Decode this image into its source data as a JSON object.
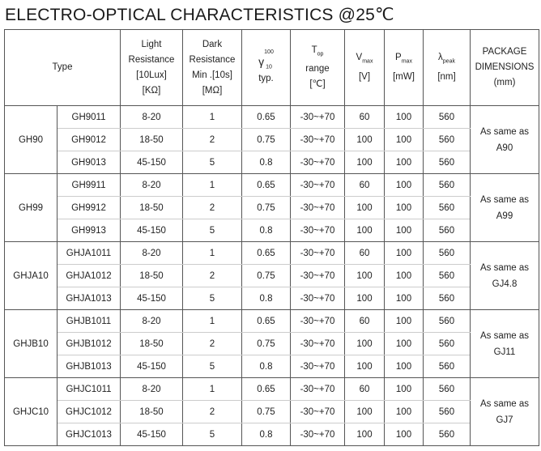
{
  "title": "ELECTRO-OPTICAL CHARACTERISTICS @25℃",
  "headers": {
    "type": "Type",
    "light": [
      "Light",
      "Resistance",
      "[10Lux]",
      "[KΩ]"
    ],
    "dark": [
      "Dark",
      "Resistance",
      "Min .[10s]",
      "[MΩ]"
    ],
    "gamma": {
      "symbol": "γ",
      "sup": "100",
      "sub": "10",
      "unit": "typ."
    },
    "top": {
      "symbol": "T",
      "sub": "op",
      "l2": "range",
      "l3": "[℃]"
    },
    "vmax": {
      "symbol": "V",
      "sub": "max",
      "unit": "[V]"
    },
    "pmax": {
      "symbol": "P",
      "sub": "max",
      "unit": "[mW]"
    },
    "lpeak": {
      "symbol": "λ",
      "sub": "peak",
      "unit": "[nm]"
    },
    "package": [
      "PACKAGE",
      "DIMENSIONS",
      "(mm)"
    ]
  },
  "groups": [
    {
      "name": "GH90",
      "package": [
        "As same as",
        "A90"
      ],
      "rows": [
        [
          "GH9011",
          "8-20",
          "1",
          "0.65",
          "-30~+70",
          "60",
          "100",
          "560"
        ],
        [
          "GH9012",
          "18-50",
          "2",
          "0.75",
          "-30~+70",
          "100",
          "100",
          "560"
        ],
        [
          "GH9013",
          "45-150",
          "5",
          "0.8",
          "-30~+70",
          "100",
          "100",
          "560"
        ]
      ]
    },
    {
      "name": "GH99",
      "package": [
        "As same as",
        "A99"
      ],
      "rows": [
        [
          "GH9911",
          "8-20",
          "1",
          "0.65",
          "-30~+70",
          "60",
          "100",
          "560"
        ],
        [
          "GH9912",
          "18-50",
          "2",
          "0.75",
          "-30~+70",
          "100",
          "100",
          "560"
        ],
        [
          "GH9913",
          "45-150",
          "5",
          "0.8",
          "-30~+70",
          "100",
          "100",
          "560"
        ]
      ]
    },
    {
      "name": "GHJA10",
      "package": [
        "As same as",
        "GJ4.8"
      ],
      "rows": [
        [
          "GHJA1011",
          "8-20",
          "1",
          "0.65",
          "-30~+70",
          "60",
          "100",
          "560"
        ],
        [
          "GHJA1012",
          "18-50",
          "2",
          "0.75",
          "-30~+70",
          "100",
          "100",
          "560"
        ],
        [
          "GHJA1013",
          "45-150",
          "5",
          "0.8",
          "-30~+70",
          "100",
          "100",
          "560"
        ]
      ]
    },
    {
      "name": "GHJB10",
      "package": [
        "As same as",
        "GJ11"
      ],
      "rows": [
        [
          "GHJB1011",
          "8-20",
          "1",
          "0.65",
          "-30~+70",
          "60",
          "100",
          "560"
        ],
        [
          "GHJB1012",
          "18-50",
          "2",
          "0.75",
          "-30~+70",
          "100",
          "100",
          "560"
        ],
        [
          "GHJB1013",
          "45-150",
          "5",
          "0.8",
          "-30~+70",
          "100",
          "100",
          "560"
        ]
      ]
    },
    {
      "name": "GHJC10",
      "package": [
        "As same as",
        "GJ7"
      ],
      "rows": [
        [
          "GHJC1011",
          "8-20",
          "1",
          "0.65",
          "-30~+70",
          "60",
          "100",
          "560"
        ],
        [
          "GHJC1012",
          "18-50",
          "2",
          "0.75",
          "-30~+70",
          "100",
          "100",
          "560"
        ],
        [
          "GHJC1013",
          "45-150",
          "5",
          "0.8",
          "-30~+70",
          "100",
          "100",
          "560"
        ]
      ]
    }
  ]
}
